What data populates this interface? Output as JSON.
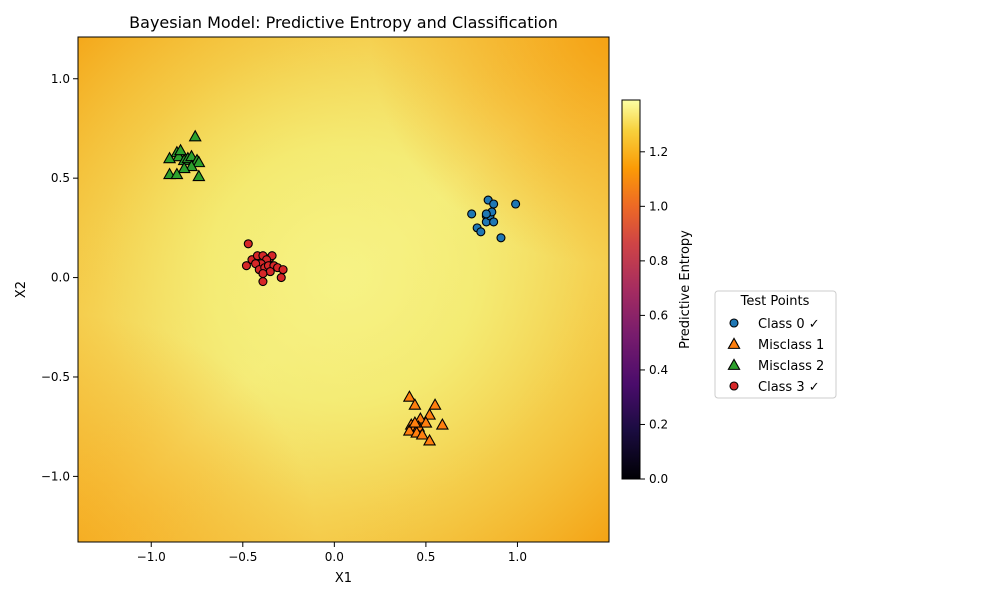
{
  "chart_data": {
    "type": "scatter",
    "title": "Bayesian Model: Predictive Entropy and Classification",
    "xlabel": "X1",
    "ylabel": "X2",
    "xlim": [
      -1.4,
      1.5
    ],
    "ylim": [
      -1.33,
      1.21
    ],
    "xticks": [
      -1.0,
      -0.5,
      0.0,
      0.5,
      1.0
    ],
    "xtick_labels": [
      "−1.0",
      "−0.5",
      "0.0",
      "0.5",
      "1.0"
    ],
    "yticks": [
      -1.0,
      -0.5,
      0.0,
      0.5,
      1.0
    ],
    "ytick_labels": [
      "−1.0",
      "−0.5",
      "0.0",
      "0.5",
      "1.0"
    ],
    "grid": false,
    "background": {
      "type": "heatmap",
      "quantity": "Predictive Entropy",
      "colormap": "inferno",
      "description_levels": {
        "low_entropy_corners": 1.05,
        "high_entropy_center": 1.38
      }
    },
    "colorbar": {
      "label": "Predictive Entropy",
      "range": [
        0.0,
        1.39
      ],
      "ticks": [
        0.0,
        0.2,
        0.4,
        0.6,
        0.8,
        1.0,
        1.2
      ],
      "tick_labels": [
        "0.0",
        "0.2",
        "0.4",
        "0.6",
        "0.8",
        "1.0",
        "1.2"
      ]
    },
    "legend": {
      "title": "Test Points",
      "placement": "right outside",
      "entries": [
        {
          "label": "Class 0 ✓",
          "marker": "circle",
          "color": "#1f77b4"
        },
        {
          "label": "Misclass 1",
          "marker": "triangle",
          "color": "#ff7f0e"
        },
        {
          "label": "Misclass 2",
          "marker": "triangle",
          "color": "#2ca02c"
        },
        {
          "label": "Class 3 ✓",
          "marker": "circle",
          "color": "#d62728"
        }
      ]
    },
    "series": [
      {
        "name": "Class 0 ✓",
        "marker": "circle",
        "color": "#1f77b4",
        "points": [
          [
            0.75,
            0.32
          ],
          [
            0.78,
            0.25
          ],
          [
            0.8,
            0.23
          ],
          [
            0.83,
            0.31
          ],
          [
            0.83,
            0.28
          ],
          [
            0.84,
            0.39
          ],
          [
            0.85,
            0.31
          ],
          [
            0.86,
            0.33
          ],
          [
            0.87,
            0.37
          ],
          [
            0.87,
            0.28
          ],
          [
            0.91,
            0.2
          ],
          [
            0.99,
            0.37
          ],
          [
            0.83,
            0.32
          ]
        ]
      },
      {
        "name": "Misclass 1",
        "marker": "triangle",
        "color": "#ff7f0e",
        "points": [
          [
            0.41,
            -0.6
          ],
          [
            0.44,
            -0.64
          ],
          [
            0.55,
            -0.64
          ],
          [
            0.52,
            -0.69
          ],
          [
            0.47,
            -0.71
          ],
          [
            0.5,
            -0.73
          ],
          [
            0.42,
            -0.74
          ],
          [
            0.44,
            -0.75
          ],
          [
            0.46,
            -0.75
          ],
          [
            0.59,
            -0.74
          ],
          [
            0.41,
            -0.77
          ],
          [
            0.45,
            -0.78
          ],
          [
            0.48,
            -0.79
          ],
          [
            0.52,
            -0.82
          ],
          [
            0.44,
            -0.73
          ]
        ]
      },
      {
        "name": "Misclass 2",
        "marker": "triangle",
        "color": "#2ca02c",
        "points": [
          [
            -0.86,
            0.63
          ],
          [
            -0.85,
            0.61
          ],
          [
            -0.9,
            0.6
          ],
          [
            -0.82,
            0.59
          ],
          [
            -0.8,
            0.6
          ],
          [
            -0.78,
            0.61
          ],
          [
            -0.75,
            0.59
          ],
          [
            -0.74,
            0.58
          ],
          [
            -0.78,
            0.56
          ],
          [
            -0.82,
            0.55
          ],
          [
            -0.9,
            0.52
          ],
          [
            -0.86,
            0.52
          ],
          [
            -0.74,
            0.51
          ],
          [
            -0.76,
            0.71
          ],
          [
            -0.84,
            0.64
          ]
        ]
      },
      {
        "name": "Class 3 ✓",
        "marker": "circle",
        "color": "#d62728",
        "points": [
          [
            -0.47,
            0.17
          ],
          [
            -0.45,
            0.09
          ],
          [
            -0.42,
            0.11
          ],
          [
            -0.39,
            0.11
          ],
          [
            -0.35,
            0.1
          ],
          [
            -0.34,
            0.11
          ],
          [
            -0.37,
            0.09
          ],
          [
            -0.4,
            0.07
          ],
          [
            -0.43,
            0.07
          ],
          [
            -0.48,
            0.06
          ],
          [
            -0.41,
            0.04
          ],
          [
            -0.38,
            0.05
          ],
          [
            -0.36,
            0.06
          ],
          [
            -0.33,
            0.06
          ],
          [
            -0.31,
            0.05
          ],
          [
            -0.28,
            0.04
          ],
          [
            -0.35,
            0.03
          ],
          [
            -0.39,
            0.02
          ],
          [
            -0.29,
            0.0
          ],
          [
            -0.39,
            -0.02
          ]
        ]
      }
    ]
  }
}
